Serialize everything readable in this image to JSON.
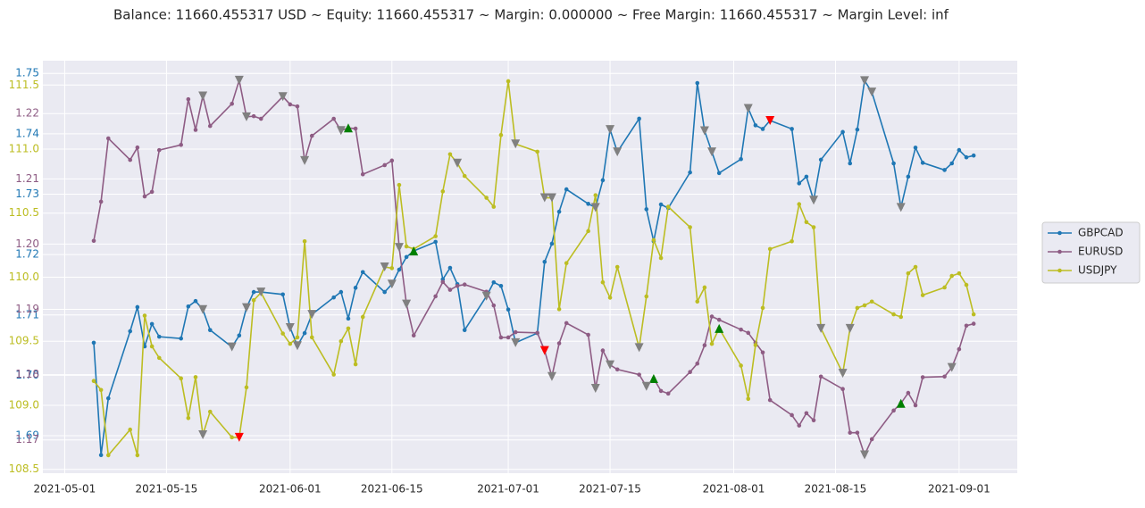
{
  "chart_data": {
    "type": "line",
    "title": "Balance: 11660.455317 USD ~ Equity: 11660.455317 ~ Margin: 0.000000 ~ Free Margin: 11660.455317 ~ Margin Level: inf",
    "x": [
      "2021-05-05",
      "2021-05-06",
      "2021-05-07",
      "2021-05-10",
      "2021-05-11",
      "2021-05-12",
      "2021-05-13",
      "2021-05-14",
      "2021-05-17",
      "2021-05-18",
      "2021-05-19",
      "2021-05-20",
      "2021-05-21",
      "2021-05-24",
      "2021-05-25",
      "2021-05-26",
      "2021-05-27",
      "2021-05-28",
      "2021-05-31",
      "2021-06-01",
      "2021-06-02",
      "2021-06-03",
      "2021-06-04",
      "2021-06-07",
      "2021-06-08",
      "2021-06-09",
      "2021-06-10",
      "2021-06-11",
      "2021-06-14",
      "2021-06-15",
      "2021-06-16",
      "2021-06-17",
      "2021-06-18",
      "2021-06-21",
      "2021-06-22",
      "2021-06-23",
      "2021-06-24",
      "2021-06-25",
      "2021-06-28",
      "2021-06-29",
      "2021-06-30",
      "2021-07-01",
      "2021-07-02",
      "2021-07-05",
      "2021-07-06",
      "2021-07-07",
      "2021-07-08",
      "2021-07-09",
      "2021-07-12",
      "2021-07-13",
      "2021-07-14",
      "2021-07-15",
      "2021-07-16",
      "2021-07-19",
      "2021-07-20",
      "2021-07-21",
      "2021-07-22",
      "2021-07-23",
      "2021-07-26",
      "2021-07-27",
      "2021-07-28",
      "2021-07-29",
      "2021-07-30",
      "2021-08-02",
      "2021-08-03",
      "2021-08-04",
      "2021-08-05",
      "2021-08-06",
      "2021-08-09",
      "2021-08-10",
      "2021-08-11",
      "2021-08-12",
      "2021-08-13",
      "2021-08-16",
      "2021-08-17",
      "2021-08-18",
      "2021-08-19",
      "2021-08-20",
      "2021-08-23",
      "2021-08-24",
      "2021-08-25",
      "2021-08-26",
      "2021-08-27",
      "2021-08-30",
      "2021-08-31",
      "2021-09-01",
      "2021-09-02",
      "2021-09-03"
    ],
    "xlim": [
      "2021-04-28",
      "2021-09-09"
    ],
    "xticks": [
      "2021-05-01",
      "2021-05-15",
      "2021-06-01",
      "2021-06-15",
      "2021-07-01",
      "2021-07-15",
      "2021-08-01",
      "2021-08-15",
      "2021-09-01"
    ],
    "ylim": [
      1.6838,
      1.7521
    ],
    "yticks": [
      1.69,
      {
        "value": 1.7,
        "label": "1.70"
      },
      1.71,
      1.72,
      1.73,
      1.74,
      1.75
    ],
    "y2lim": [
      1.1649,
      1.2281
    ],
    "y2ticks": [
      1.17,
      1.18,
      1.19,
      {
        "value": 1.2,
        "label": "1.20"
      },
      1.21,
      1.22
    ],
    "y3lim": [
      108.47,
      111.69
    ],
    "y3ticks": [
      108.5,
      {
        "value": 109,
        "label": "109.0"
      },
      109.5,
      {
        "value": 110,
        "label": "110.0"
      },
      110.5,
      {
        "value": 111,
        "label": "111.0"
      },
      111.5
    ],
    "grid": true,
    "legend": "right",
    "series": [
      {
        "name": "GBPCAD",
        "color": "#1f77b4",
        "axis": "y",
        "values": [
          1.7054,
          1.6868,
          1.6962,
          1.7073,
          1.7113,
          1.7048,
          1.7085,
          1.7064,
          1.7061,
          1.7114,
          1.7123,
          1.7109,
          1.7075,
          1.7047,
          1.7066,
          1.7112,
          1.7138,
          1.7138,
          1.7134,
          1.7079,
          1.7049,
          1.707,
          1.7101,
          1.7129,
          1.7138,
          1.7094,
          1.7145,
          1.7171,
          1.7138,
          1.7151,
          1.7175,
          1.7196,
          1.7206,
          1.7221,
          1.7159,
          1.7178,
          1.7151,
          1.7075,
          1.7131,
          1.7154,
          1.7148,
          1.7109,
          1.7054,
          1.707,
          1.7188,
          1.7218,
          1.7271,
          1.7308,
          1.7284,
          1.7278,
          1.7323,
          1.7407,
          1.737,
          1.7425,
          1.7275,
          1.7222,
          1.7283,
          1.7277,
          1.7336,
          1.7484,
          1.7405,
          1.737,
          1.7335,
          1.7358,
          1.7442,
          1.7414,
          1.7408,
          1.7422,
          1.7408,
          1.7318,
          1.7329,
          1.729,
          1.7357,
          1.7403,
          1.7351,
          1.7407,
          1.7488,
          1.7469,
          1.7351,
          1.7278,
          1.7329,
          1.7377,
          1.7352,
          1.734,
          1.7351,
          1.7373,
          1.7361,
          1.7364
        ]
      },
      {
        "name": "EURUSD",
        "color": "#8e5c84",
        "axis": "y2",
        "values": [
          1.2005,
          1.2065,
          1.2162,
          1.2129,
          1.2148,
          1.2073,
          1.208,
          1.2144,
          1.2152,
          1.2222,
          1.2175,
          1.2227,
          1.2181,
          1.2215,
          1.2251,
          1.2195,
          1.2196,
          1.2192,
          1.2226,
          1.2214,
          1.2211,
          1.2128,
          1.2166,
          1.2192,
          1.2174,
          1.2178,
          1.2177,
          1.2107,
          1.2121,
          1.2128,
          1.1995,
          1.1908,
          1.186,
          1.192,
          1.1942,
          1.193,
          1.1936,
          1.1938,
          1.1927,
          1.1906,
          1.1857,
          1.1857,
          1.1865,
          1.1864,
          1.1837,
          1.1797,
          1.1848,
          1.1879,
          1.1861,
          1.1779,
          1.1837,
          1.1815,
          1.1808,
          1.18,
          1.1782,
          1.1794,
          1.1775,
          1.1771,
          1.1804,
          1.1817,
          1.1845,
          1.1889,
          1.1884,
          1.1869,
          1.1864,
          1.1849,
          1.1834,
          1.1761,
          1.1738,
          1.1722,
          1.1741,
          1.173,
          1.1797,
          1.1778,
          1.1711,
          1.1711,
          1.1677,
          1.1701,
          1.1745,
          1.1756,
          1.1772,
          1.1753,
          1.1796,
          1.1797,
          1.1811,
          1.1839,
          1.1875,
          1.1878
        ]
      },
      {
        "name": "USDJPY",
        "color": "#bcbd22",
        "axis": "y3",
        "values": [
          109.19,
          109.12,
          108.61,
          108.81,
          108.61,
          109.7,
          109.46,
          109.37,
          109.21,
          108.9,
          109.22,
          108.77,
          108.95,
          108.75,
          108.75,
          109.14,
          109.82,
          109.88,
          109.56,
          109.48,
          109.53,
          110.28,
          109.53,
          109.24,
          109.5,
          109.6,
          109.32,
          109.69,
          110.08,
          110.07,
          110.72,
          110.24,
          110.22,
          110.32,
          110.67,
          110.96,
          110.89,
          110.79,
          110.62,
          110.55,
          111.11,
          111.53,
          111.04,
          110.98,
          110.62,
          110.62,
          109.75,
          110.11,
          110.36,
          110.64,
          109.96,
          109.84,
          110.08,
          109.45,
          109.85,
          110.29,
          110.15,
          110.55,
          110.39,
          109.81,
          109.92,
          109.48,
          109.6,
          109.31,
          109.05,
          109.47,
          109.76,
          110.22,
          110.28,
          110.57,
          110.43,
          110.39,
          109.6,
          109.25,
          109.6,
          109.76,
          109.78,
          109.81,
          109.71,
          109.69,
          110.03,
          110.08,
          109.86,
          109.92,
          110.01,
          110.03,
          109.94,
          109.71
        ]
      }
    ],
    "trades": [
      {
        "x": "2021-06-09",
        "series": "EURUSD",
        "marker": "up",
        "color": "green"
      },
      {
        "x": "2021-06-18",
        "series": "GBPCAD",
        "marker": "up",
        "color": "green"
      },
      {
        "x": "2021-07-21",
        "series": "EURUSD",
        "marker": "up",
        "color": "green"
      },
      {
        "x": "2021-07-30",
        "series": "USDJPY",
        "marker": "up",
        "color": "green"
      },
      {
        "x": "2021-08-24",
        "series": "EURUSD",
        "marker": "up",
        "color": "green"
      },
      {
        "x": "2021-05-25",
        "series": "USDJPY",
        "marker": "down",
        "color": "red"
      },
      {
        "x": "2021-07-06",
        "series": "EURUSD",
        "marker": "down",
        "color": "red"
      },
      {
        "x": "2021-08-06",
        "series": "GBPCAD",
        "marker": "down",
        "color": "red"
      },
      {
        "x": "2021-05-20",
        "series": "GBPCAD",
        "marker": "down",
        "color": "gray"
      },
      {
        "x": "2021-05-24",
        "series": "GBPCAD",
        "marker": "down",
        "color": "gray"
      },
      {
        "x": "2021-05-26",
        "series": "GBPCAD",
        "marker": "down",
        "color": "gray"
      },
      {
        "x": "2021-05-28",
        "series": "GBPCAD",
        "marker": "down",
        "color": "gray"
      },
      {
        "x": "2021-06-01",
        "series": "GBPCAD",
        "marker": "down",
        "color": "gray"
      },
      {
        "x": "2021-06-02",
        "series": "GBPCAD",
        "marker": "down",
        "color": "gray"
      },
      {
        "x": "2021-06-04",
        "series": "GBPCAD",
        "marker": "down",
        "color": "gray"
      },
      {
        "x": "2021-06-15",
        "series": "GBPCAD",
        "marker": "down",
        "color": "gray"
      },
      {
        "x": "2021-06-28",
        "series": "GBPCAD",
        "marker": "down",
        "color": "gray"
      },
      {
        "x": "2021-07-02",
        "series": "GBPCAD",
        "marker": "down",
        "color": "gray"
      },
      {
        "x": "2021-07-13",
        "series": "GBPCAD",
        "marker": "down",
        "color": "gray"
      },
      {
        "x": "2021-07-15",
        "series": "GBPCAD",
        "marker": "down",
        "color": "gray"
      },
      {
        "x": "2021-07-16",
        "series": "GBPCAD",
        "marker": "down",
        "color": "gray"
      },
      {
        "x": "2021-07-28",
        "series": "GBPCAD",
        "marker": "down",
        "color": "gray"
      },
      {
        "x": "2021-07-29",
        "series": "GBPCAD",
        "marker": "down",
        "color": "gray"
      },
      {
        "x": "2021-08-03",
        "series": "GBPCAD",
        "marker": "down",
        "color": "gray"
      },
      {
        "x": "2021-08-12",
        "series": "GBPCAD",
        "marker": "down",
        "color": "gray"
      },
      {
        "x": "2021-08-19",
        "series": "GBPCAD",
        "marker": "down",
        "color": "gray"
      },
      {
        "x": "2021-08-20",
        "series": "GBPCAD",
        "marker": "down",
        "color": "gray"
      },
      {
        "x": "2021-08-24",
        "series": "GBPCAD",
        "marker": "down",
        "color": "gray"
      },
      {
        "x": "2021-05-20",
        "series": "EURUSD",
        "marker": "down",
        "color": "gray"
      },
      {
        "x": "2021-05-25",
        "series": "EURUSD",
        "marker": "down",
        "color": "gray"
      },
      {
        "x": "2021-05-26",
        "series": "EURUSD",
        "marker": "down",
        "color": "gray"
      },
      {
        "x": "2021-05-31",
        "series": "EURUSD",
        "marker": "down",
        "color": "gray"
      },
      {
        "x": "2021-06-03",
        "series": "EURUSD",
        "marker": "down",
        "color": "gray"
      },
      {
        "x": "2021-06-08",
        "series": "EURUSD",
        "marker": "down",
        "color": "gray"
      },
      {
        "x": "2021-06-16",
        "series": "EURUSD",
        "marker": "down",
        "color": "gray"
      },
      {
        "x": "2021-06-17",
        "series": "EURUSD",
        "marker": "down",
        "color": "gray"
      },
      {
        "x": "2021-07-07",
        "series": "EURUSD",
        "marker": "down",
        "color": "gray"
      },
      {
        "x": "2021-07-13",
        "series": "EURUSD",
        "marker": "down",
        "color": "gray"
      },
      {
        "x": "2021-07-15",
        "series": "EURUSD",
        "marker": "down",
        "color": "gray"
      },
      {
        "x": "2021-07-20",
        "series": "EURUSD",
        "marker": "down",
        "color": "gray"
      },
      {
        "x": "2021-08-19",
        "series": "EURUSD",
        "marker": "down",
        "color": "gray"
      },
      {
        "x": "2021-08-31",
        "series": "EURUSD",
        "marker": "down",
        "color": "gray"
      },
      {
        "x": "2021-05-20",
        "series": "USDJPY",
        "marker": "down",
        "color": "gray"
      },
      {
        "x": "2021-06-14",
        "series": "USDJPY",
        "marker": "down",
        "color": "gray"
      },
      {
        "x": "2021-06-24",
        "series": "USDJPY",
        "marker": "down",
        "color": "gray"
      },
      {
        "x": "2021-07-02",
        "series": "USDJPY",
        "marker": "down",
        "color": "gray"
      },
      {
        "x": "2021-07-06",
        "series": "USDJPY",
        "marker": "down",
        "color": "gray"
      },
      {
        "x": "2021-07-07",
        "series": "USDJPY",
        "marker": "down",
        "color": "gray"
      },
      {
        "x": "2021-07-19",
        "series": "USDJPY",
        "marker": "down",
        "color": "gray"
      },
      {
        "x": "2021-08-13",
        "series": "USDJPY",
        "marker": "down",
        "color": "gray"
      },
      {
        "x": "2021-08-16",
        "series": "USDJPY",
        "marker": "down",
        "color": "gray"
      },
      {
        "x": "2021-08-17",
        "series": "USDJPY",
        "marker": "down",
        "color": "gray"
      }
    ]
  }
}
